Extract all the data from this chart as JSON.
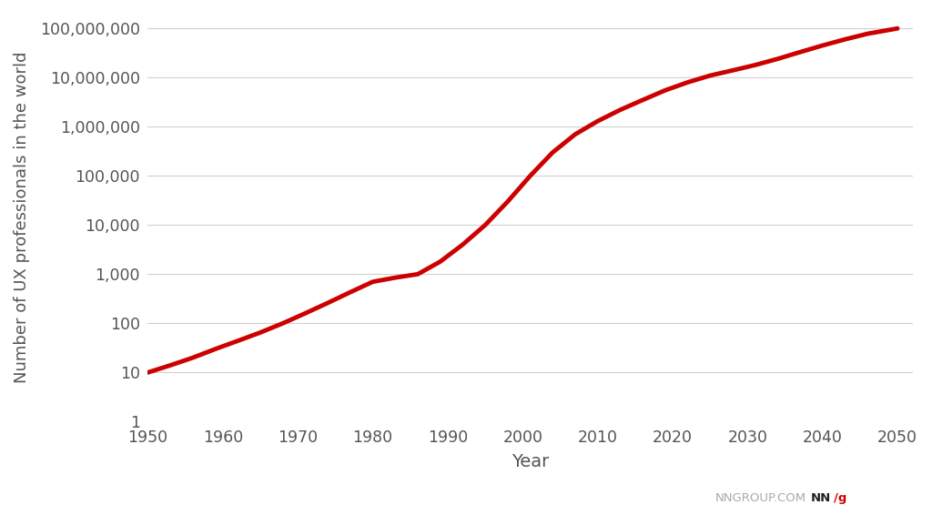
{
  "x": [
    1950,
    1953,
    1956,
    1959,
    1962,
    1965,
    1968,
    1971,
    1974,
    1977,
    1980,
    1983,
    1986,
    1989,
    1992,
    1995,
    1998,
    2001,
    2004,
    2007,
    2010,
    2013,
    2016,
    2019,
    2022,
    2025,
    2028,
    2031,
    2034,
    2037,
    2040,
    2043,
    2046,
    2050
  ],
  "y": [
    10,
    14,
    20,
    30,
    44,
    65,
    100,
    160,
    260,
    430,
    700,
    850,
    1000,
    1800,
    4000,
    10000,
    30000,
    100000,
    300000,
    700000,
    1300000,
    2200000,
    3500000,
    5500000,
    8000000,
    11000000,
    14000000,
    18000000,
    24000000,
    33000000,
    45000000,
    60000000,
    78000000,
    100000000
  ],
  "line_color": "#cc0000",
  "line_width": 3.5,
  "ylabel": "Number of UX professionals in the world",
  "xlabel": "Year",
  "yticks": [
    1,
    10,
    100,
    1000,
    10000,
    100000,
    1000000,
    10000000,
    100000000
  ],
  "ytick_labels": [
    "1",
    "10",
    "100",
    "1,000",
    "10,000",
    "100,000",
    "1,000,000",
    "10,000,000",
    "100,000,000"
  ],
  "xticks": [
    1950,
    1960,
    1970,
    1980,
    1990,
    2000,
    2010,
    2020,
    2030,
    2040,
    2050
  ],
  "xlim": [
    1950,
    2052
  ],
  "ylim": [
    1,
    200000000
  ],
  "background_color": "#ffffff",
  "grid_color": "#d0d0d0",
  "watermark_nngroup": "NNGROUP.COM",
  "ylabel_fontsize": 13,
  "xlabel_fontsize": 14,
  "tick_fontsize": 12.5,
  "tick_color": "#555555"
}
